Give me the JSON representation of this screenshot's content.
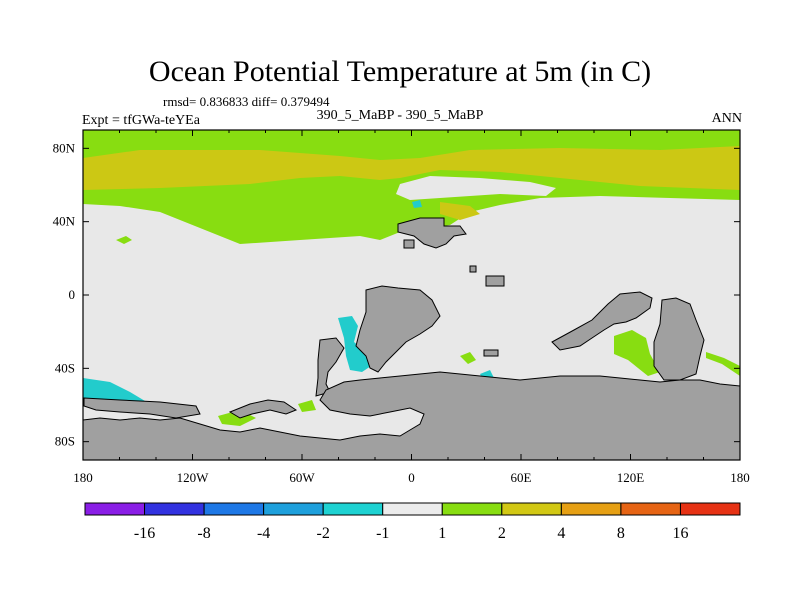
{
  "title": "Ocean Potential Temperature at 5m (in C)",
  "stats_text": "rmsd= 0.836833 diff= 0.379494",
  "expt_text": "Expt = tfGWa-teYEa",
  "case_text": "390_5_MaBP - 390_5_MaBP",
  "season": "ANN",
  "colors": {
    "land": "#a0a0a0",
    "zero_band": "#e8e8e8",
    "green": "#88dd11",
    "yellow": "#ccc814",
    "cyan": "#22cccc",
    "ltblue": "#1cacd8"
  },
  "chart_data": {
    "type": "heatmap",
    "title": "Ocean Potential Temperature at 5m (in C)",
    "xlabel": "",
    "ylabel": "",
    "xlim": [
      -180,
      180
    ],
    "ylim": [
      -90,
      90
    ],
    "x_ticks": [
      {
        "value": -180,
        "label": "180"
      },
      {
        "value": -120,
        "label": "120W"
      },
      {
        "value": -60,
        "label": "60W"
      },
      {
        "value": 0,
        "label": "0"
      },
      {
        "value": 60,
        "label": "60E"
      },
      {
        "value": 120,
        "label": "120E"
      },
      {
        "value": 180,
        "label": "180"
      }
    ],
    "y_ticks": [
      {
        "value": 80,
        "label": "80N"
      },
      {
        "value": 40,
        "label": "40N"
      },
      {
        "value": 0,
        "label": "0"
      },
      {
        "value": -40,
        "label": "40S"
      },
      {
        "value": -80,
        "label": "80S"
      }
    ],
    "colorbar": {
      "colors": [
        "#8a1ee6",
        "#3232e0",
        "#1e78e6",
        "#1ea0dc",
        "#1ed2d2",
        "#ececec",
        "#88dd11",
        "#d2c814",
        "#e6a014",
        "#e66414",
        "#e63214"
      ],
      "labels": [
        "-16",
        "-8",
        "-4",
        "-2",
        "-1",
        "1",
        "2",
        "4",
        "8",
        "16"
      ]
    }
  }
}
